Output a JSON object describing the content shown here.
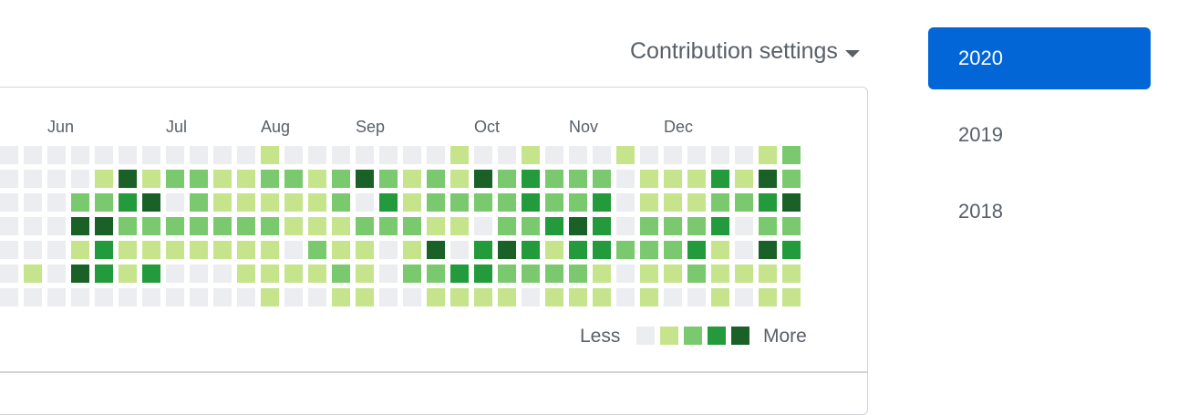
{
  "header": {
    "contribution_settings_label": "Contribution settings",
    "caret_icon": "caret-down-icon"
  },
  "graph": {
    "months": [
      {
        "label": "Jun",
        "week": 2
      },
      {
        "label": "Jul",
        "week": 7
      },
      {
        "label": "Aug",
        "week": 11
      },
      {
        "label": "Sep",
        "week": 15
      },
      {
        "label": "Oct",
        "week": 20
      },
      {
        "label": "Nov",
        "week": 24
      },
      {
        "label": "Dec",
        "week": 28
      }
    ],
    "level_colors": [
      "#ebedf0",
      "#c6e48b",
      "#7bc96f",
      "#239a3b",
      "#196127"
    ],
    "weeks": [
      [
        0,
        0,
        0,
        0,
        0,
        0,
        0
      ],
      [
        0,
        0,
        0,
        0,
        0,
        1,
        0
      ],
      [
        0,
        0,
        0,
        0,
        0,
        0,
        0
      ],
      [
        0,
        0,
        2,
        4,
        1,
        4,
        0
      ],
      [
        0,
        1,
        2,
        4,
        3,
        3,
        0
      ],
      [
        0,
        4,
        3,
        2,
        1,
        1,
        0
      ],
      [
        0,
        1,
        4,
        2,
        1,
        3,
        0
      ],
      [
        0,
        2,
        0,
        2,
        1,
        0,
        0
      ],
      [
        0,
        2,
        2,
        2,
        1,
        0,
        0
      ],
      [
        0,
        1,
        1,
        2,
        1,
        0,
        0
      ],
      [
        0,
        1,
        1,
        2,
        1,
        1,
        0
      ],
      [
        1,
        2,
        1,
        2,
        1,
        1,
        1
      ],
      [
        0,
        2,
        1,
        1,
        0,
        1,
        0
      ],
      [
        0,
        1,
        1,
        1,
        2,
        1,
        0
      ],
      [
        0,
        2,
        2,
        1,
        1,
        2,
        1
      ],
      [
        0,
        4,
        0,
        2,
        1,
        1,
        1
      ],
      [
        0,
        2,
        3,
        2,
        0,
        0,
        0
      ],
      [
        0,
        1,
        1,
        2,
        1,
        2,
        0
      ],
      [
        0,
        2,
        2,
        1,
        4,
        2,
        1
      ],
      [
        1,
        1,
        2,
        1,
        0,
        3,
        1
      ],
      [
        0,
        4,
        2,
        0,
        3,
        3,
        1
      ],
      [
        0,
        2,
        2,
        2,
        4,
        2,
        1
      ],
      [
        1,
        3,
        3,
        2,
        3,
        2,
        0
      ],
      [
        0,
        2,
        2,
        3,
        1,
        2,
        1
      ],
      [
        0,
        2,
        2,
        4,
        3,
        2,
        1
      ],
      [
        0,
        2,
        3,
        3,
        3,
        1,
        1
      ],
      [
        1,
        0,
        0,
        0,
        2,
        0,
        0
      ],
      [
        0,
        1,
        1,
        2,
        2,
        1,
        1
      ],
      [
        0,
        1,
        1,
        2,
        2,
        1,
        0
      ],
      [
        0,
        1,
        1,
        2,
        3,
        2,
        0
      ],
      [
        0,
        3,
        2,
        3,
        1,
        1,
        1
      ],
      [
        0,
        1,
        2,
        0,
        0,
        1,
        0
      ],
      [
        1,
        4,
        3,
        2,
        4,
        1,
        1
      ],
      [
        2,
        2,
        4,
        2,
        3,
        1,
        1
      ]
    ],
    "legend": {
      "less": "Less",
      "more": "More"
    }
  },
  "years": [
    {
      "label": "2020",
      "active": true
    },
    {
      "label": "2019",
      "active": false
    },
    {
      "label": "2018",
      "active": false
    }
  ]
}
